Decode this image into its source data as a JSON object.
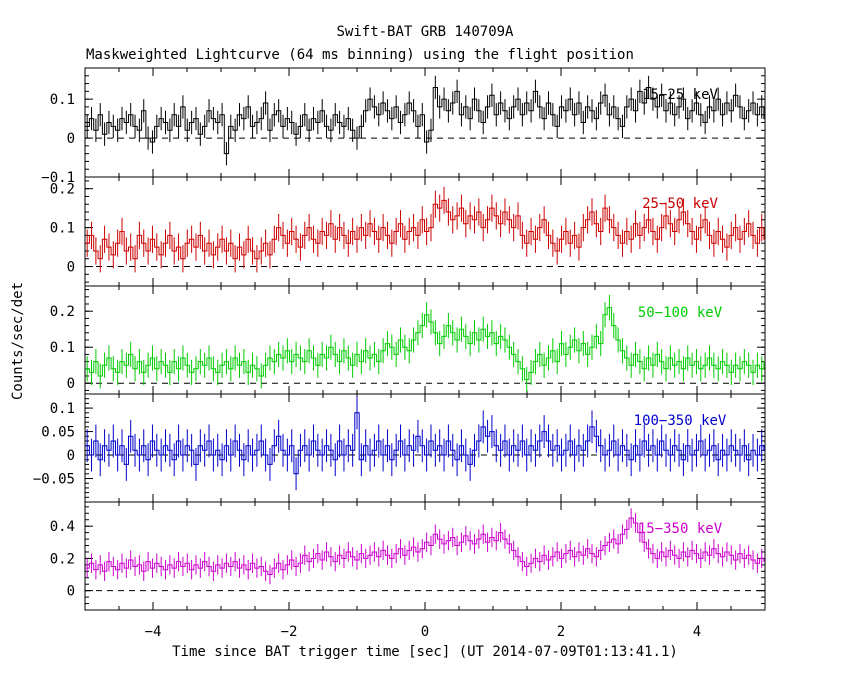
{
  "title": "Swift-BAT GRB 140709A",
  "subtitle": "Maskweighted Lightcurve (64 ms binning) using the flight position",
  "xlabel": "Time since BAT trigger time [sec] (UT 2014-07-09T01:13:41.1)",
  "ylabel": "Counts/sec/det",
  "chart_data": {
    "type": "line",
    "title": "Swift-BAT GRB 140709A",
    "subtitle": "Maskweighted Lightcurve (64 ms binning) using the flight position",
    "xlabel": "Time since BAT trigger time [sec] (UT 2014-07-09T01:13:41.1)",
    "ylabel": "Counts/sec/det",
    "xlim": [
      -5,
      5
    ],
    "bin_width": 0.064,
    "x_ticks": [
      -4,
      -2,
      0,
      2,
      4
    ],
    "x_tick_labels": [
      "−4",
      "−2",
      "0",
      "2",
      "4"
    ],
    "grid": false,
    "series": [
      {
        "name": "15−25 keV",
        "color": "#000000",
        "ylim": [
          -0.1,
          0.18
        ],
        "yticks": [
          -0.1,
          0,
          0.1
        ],
        "ytick_labels": [
          "−0.1",
          "0",
          "0.1"
        ],
        "error": 0.03,
        "values": [
          0.03,
          0.05,
          0.02,
          0.06,
          0.01,
          0.04,
          0.03,
          0.02,
          0.05,
          0.04,
          0.06,
          0.03,
          0.02,
          0.07,
          0.0,
          -0.01,
          0.03,
          0.05,
          0.04,
          0.02,
          0.06,
          0.03,
          0.08,
          0.02,
          0.04,
          0.05,
          0.01,
          0.03,
          0.07,
          0.05,
          0.04,
          0.06,
          -0.04,
          0.03,
          0.02,
          0.06,
          0.05,
          0.08,
          0.03,
          0.04,
          0.05,
          0.09,
          0.02,
          0.06,
          0.07,
          0.03,
          0.05,
          0.04,
          0.01,
          0.03,
          0.06,
          0.02,
          0.05,
          0.04,
          0.07,
          0.03,
          0.02,
          0.06,
          0.04,
          0.03,
          0.05,
          0.02,
          0.0,
          0.03,
          0.07,
          0.1,
          0.08,
          0.06,
          0.09,
          0.07,
          0.05,
          0.08,
          0.04,
          0.06,
          0.09,
          0.07,
          0.03,
          0.06,
          -0.01,
          0.02,
          0.13,
          0.08,
          0.1,
          0.07,
          0.09,
          0.12,
          0.06,
          0.08,
          0.05,
          0.1,
          0.07,
          0.04,
          0.08,
          0.11,
          0.06,
          0.09,
          0.07,
          0.05,
          0.08,
          0.1,
          0.06,
          0.09,
          0.07,
          0.12,
          0.08,
          0.05,
          0.09,
          0.06,
          0.03,
          0.08,
          0.07,
          0.1,
          0.06,
          0.09,
          0.04,
          0.08,
          0.07,
          0.05,
          0.09,
          0.11,
          0.06,
          0.08,
          0.05,
          0.03,
          0.08,
          0.1,
          0.07,
          0.12,
          0.09,
          0.13,
          0.1,
          0.08,
          0.11,
          0.07,
          0.09,
          0.06,
          0.08,
          0.1,
          0.05,
          0.07,
          0.09,
          0.06,
          0.04,
          0.08,
          0.07,
          0.1,
          0.06,
          0.09,
          0.07,
          0.11,
          0.08,
          0.05,
          0.07,
          0.09,
          0.06,
          0.08,
          0.05,
          0.07,
          0.04,
          0.02,
          0.05,
          0.06
        ]
      },
      {
        "name": "25−50 keV",
        "color": "#cc0000",
        "ylim": [
          -0.05,
          0.23
        ],
        "yticks": [
          0,
          0.1,
          0.2
        ],
        "ytick_labels": [
          "0",
          "0.1",
          "0.2"
        ],
        "error": 0.035,
        "values": [
          0.06,
          0.08,
          0.04,
          0.02,
          0.07,
          0.05,
          0.03,
          0.06,
          0.09,
          0.04,
          0.05,
          0.02,
          0.08,
          0.06,
          0.04,
          0.07,
          0.05,
          0.03,
          0.06,
          0.08,
          0.04,
          0.05,
          0.02,
          0.06,
          0.07,
          0.05,
          0.08,
          0.04,
          0.06,
          0.03,
          0.05,
          0.07,
          0.04,
          0.06,
          0.02,
          0.05,
          0.03,
          0.07,
          0.04,
          0.02,
          0.04,
          0.06,
          0.03,
          0.07,
          0.1,
          0.08,
          0.06,
          0.09,
          0.07,
          0.05,
          0.08,
          0.1,
          0.07,
          0.06,
          0.09,
          0.08,
          0.11,
          0.07,
          0.1,
          0.08,
          0.06,
          0.09,
          0.07,
          0.1,
          0.08,
          0.11,
          0.09,
          0.07,
          0.1,
          0.08,
          0.06,
          0.09,
          0.11,
          0.07,
          0.09,
          0.1,
          0.08,
          0.12,
          0.09,
          0.1,
          0.16,
          0.15,
          0.17,
          0.14,
          0.12,
          0.13,
          0.15,
          0.11,
          0.13,
          0.12,
          0.14,
          0.1,
          0.12,
          0.15,
          0.13,
          0.11,
          0.14,
          0.12,
          0.1,
          0.13,
          0.08,
          0.06,
          0.09,
          0.07,
          0.1,
          0.12,
          0.08,
          0.06,
          0.04,
          0.07,
          0.09,
          0.06,
          0.08,
          0.05,
          0.1,
          0.12,
          0.14,
          0.11,
          0.09,
          0.15,
          0.12,
          0.1,
          0.08,
          0.06,
          0.09,
          0.07,
          0.11,
          0.08,
          0.1,
          0.12,
          0.09,
          0.07,
          0.1,
          0.13,
          0.11,
          0.09,
          0.12,
          0.14,
          0.11,
          0.09,
          0.07,
          0.1,
          0.12,
          0.08,
          0.06,
          0.09,
          0.07,
          0.05,
          0.08,
          0.1,
          0.07,
          0.09,
          0.11,
          0.08,
          0.06,
          0.1,
          0.07,
          0.05,
          0.08,
          0.06
        ]
      },
      {
        "name": "50−100 keV",
        "color": "#00cc00",
        "ylim": [
          -0.03,
          0.27
        ],
        "yticks": [
          0,
          0.1,
          0.2
        ],
        "ytick_labels": [
          "0",
          "0.1",
          "0.2"
        ],
        "error": 0.035,
        "values": [
          0.04,
          0.03,
          0.06,
          0.02,
          0.05,
          0.07,
          0.04,
          0.03,
          0.06,
          0.05,
          0.08,
          0.04,
          0.06,
          0.03,
          0.05,
          0.07,
          0.04,
          0.06,
          0.05,
          0.03,
          0.06,
          0.04,
          0.07,
          0.05,
          0.03,
          0.04,
          0.06,
          0.05,
          0.07,
          0.04,
          0.03,
          0.05,
          0.06,
          0.04,
          0.07,
          0.05,
          0.06,
          0.03,
          0.05,
          0.04,
          0.02,
          0.05,
          0.07,
          0.06,
          0.08,
          0.07,
          0.09,
          0.06,
          0.08,
          0.07,
          0.06,
          0.09,
          0.07,
          0.05,
          0.08,
          0.07,
          0.1,
          0.08,
          0.06,
          0.09,
          0.07,
          0.05,
          0.08,
          0.06,
          0.09,
          0.07,
          0.08,
          0.06,
          0.09,
          0.11,
          0.1,
          0.08,
          0.12,
          0.1,
          0.09,
          0.12,
          0.14,
          0.16,
          0.19,
          0.17,
          0.14,
          0.11,
          0.13,
          0.16,
          0.14,
          0.12,
          0.15,
          0.13,
          0.11,
          0.14,
          0.12,
          0.15,
          0.13,
          0.14,
          0.11,
          0.13,
          0.12,
          0.1,
          0.08,
          0.06,
          0.04,
          0.01,
          0.03,
          0.06,
          0.08,
          0.05,
          0.07,
          0.09,
          0.06,
          0.11,
          0.08,
          0.1,
          0.12,
          0.09,
          0.11,
          0.08,
          0.1,
          0.13,
          0.11,
          0.19,
          0.21,
          0.16,
          0.12,
          0.09,
          0.07,
          0.05,
          0.08,
          0.06,
          0.04,
          0.07,
          0.05,
          0.08,
          0.06,
          0.04,
          0.07,
          0.05,
          0.06,
          0.04,
          0.07,
          0.05,
          0.06,
          0.04,
          0.05,
          0.07,
          0.05,
          0.04,
          0.06,
          0.05,
          0.03,
          0.05,
          0.04,
          0.06,
          0.05,
          0.03,
          0.05,
          0.04,
          0.06,
          0.05,
          0.03,
          0.05
        ]
      },
      {
        "name": "100−350 keV",
        "color": "#0000cc",
        "ylim": [
          -0.1,
          0.13
        ],
        "yticks": [
          -0.05,
          0,
          0.05,
          0.1
        ],
        "ytick_labels": [
          "−0.05",
          "0",
          "0.05",
          "0.1"
        ],
        "error": 0.035,
        "values": [
          0.02,
          0.0,
          0.03,
          -0.01,
          0.02,
          0.01,
          0.03,
          0.0,
          0.02,
          -0.02,
          0.04,
          0.01,
          0.0,
          0.02,
          -0.01,
          0.03,
          0.01,
          0.0,
          0.02,
          0.01,
          -0.01,
          0.03,
          0.0,
          0.02,
          0.01,
          -0.02,
          0.02,
          0.01,
          0.03,
          0.0,
          0.01,
          -0.01,
          0.02,
          0.0,
          0.03,
          0.01,
          -0.01,
          0.02,
          0.0,
          0.01,
          0.03,
          0.0,
          -0.02,
          0.02,
          0.04,
          0.01,
          0.0,
          0.02,
          -0.04,
          0.01,
          0.02,
          0.0,
          0.03,
          0.01,
          0.0,
          0.02,
          0.01,
          -0.01,
          0.03,
          0.0,
          0.02,
          0.01,
          0.09,
          -0.01,
          0.02,
          0.0,
          0.01,
          0.03,
          0.0,
          0.02,
          -0.01,
          0.01,
          0.03,
          0.0,
          0.02,
          0.01,
          0.04,
          0.02,
          0.0,
          0.03,
          0.01,
          0.02,
          0.0,
          0.03,
          0.01,
          -0.01,
          0.02,
          0.0,
          -0.02,
          0.01,
          0.03,
          0.06,
          0.04,
          0.05,
          0.02,
          0.01,
          0.03,
          0.0,
          0.02,
          0.01,
          0.03,
          0.0,
          0.02,
          0.01,
          0.03,
          0.05,
          0.03,
          0.01,
          0.02,
          0.0,
          0.01,
          0.03,
          0.0,
          0.02,
          0.01,
          0.03,
          0.06,
          0.04,
          0.02,
          0.0,
          0.01,
          0.03,
          0.0,
          0.02,
          0.01,
          -0.01,
          0.02,
          0.0,
          0.03,
          0.01,
          0.02,
          0.0,
          0.03,
          0.01,
          0.0,
          0.02,
          0.01,
          -0.01,
          0.02,
          0.0,
          0.01,
          0.03,
          0.0,
          0.01,
          0.02,
          -0.01,
          0.01,
          0.0,
          0.02,
          0.01,
          0.0,
          0.02,
          -0.01,
          0.01,
          0.0,
          0.02,
          0.01,
          0.0
        ]
      },
      {
        "name": "15−350 keV",
        "color": "#cc00cc",
        "ylim": [
          -0.12,
          0.55
        ],
        "yticks": [
          0,
          0.2,
          0.4
        ],
        "ytick_labels": [
          "0",
          "0.2",
          "0.4"
        ],
        "error": 0.06,
        "values": [
          0.14,
          0.17,
          0.13,
          0.16,
          0.12,
          0.18,
          0.15,
          0.13,
          0.17,
          0.14,
          0.19,
          0.15,
          0.16,
          0.12,
          0.18,
          0.14,
          0.17,
          0.15,
          0.13,
          0.16,
          0.14,
          0.18,
          0.15,
          0.17,
          0.13,
          0.16,
          0.14,
          0.18,
          0.15,
          0.12,
          0.16,
          0.14,
          0.17,
          0.15,
          0.18,
          0.14,
          0.16,
          0.13,
          0.17,
          0.14,
          0.15,
          0.12,
          0.1,
          0.14,
          0.17,
          0.13,
          0.16,
          0.19,
          0.15,
          0.17,
          0.22,
          0.18,
          0.2,
          0.23,
          0.19,
          0.24,
          0.21,
          0.18,
          0.22,
          0.2,
          0.24,
          0.21,
          0.19,
          0.23,
          0.2,
          0.22,
          0.24,
          0.21,
          0.25,
          0.22,
          0.2,
          0.23,
          0.26,
          0.22,
          0.25,
          0.27,
          0.24,
          0.26,
          0.3,
          0.28,
          0.35,
          0.32,
          0.29,
          0.31,
          0.33,
          0.28,
          0.3,
          0.34,
          0.31,
          0.29,
          0.32,
          0.35,
          0.3,
          0.33,
          0.31,
          0.36,
          0.32,
          0.29,
          0.25,
          0.21,
          0.18,
          0.15,
          0.17,
          0.2,
          0.18,
          0.22,
          0.19,
          0.21,
          0.24,
          0.2,
          0.23,
          0.25,
          0.21,
          0.24,
          0.22,
          0.26,
          0.23,
          0.21,
          0.25,
          0.28,
          0.3,
          0.32,
          0.29,
          0.35,
          0.38,
          0.45,
          0.42,
          0.36,
          0.3,
          0.26,
          0.23,
          0.2,
          0.24,
          0.21,
          0.25,
          0.22,
          0.2,
          0.24,
          0.21,
          0.25,
          0.23,
          0.2,
          0.24,
          0.22,
          0.26,
          0.23,
          0.21,
          0.24,
          0.22,
          0.19,
          0.23,
          0.2,
          0.22,
          0.19,
          0.17,
          0.2,
          0.18,
          0.15,
          0.19,
          0.16,
          0.13,
          0.11
        ]
      }
    ]
  }
}
